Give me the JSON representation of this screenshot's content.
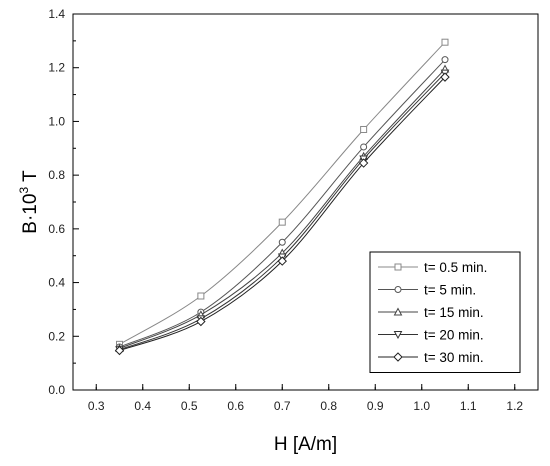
{
  "chart_data": {
    "type": "line",
    "title": "",
    "xlabel": "H [A/m]",
    "ylabel_base": "B·10",
    "ylabel_exp": "3",
    "ylabel_unit": " T",
    "xlim": [
      0.25,
      1.25
    ],
    "ylim": [
      0.0,
      1.4
    ],
    "x_ticks": [
      "0.3",
      "0.4",
      "0.5",
      "0.6",
      "0.7",
      "0.8",
      "0.9",
      "1.0",
      "1.1",
      "1.2"
    ],
    "y_ticks": [
      "0.0",
      "0.2",
      "0.4",
      "0.6",
      "0.8",
      "1.0",
      "1.2",
      "1.4"
    ],
    "legend_position": "bottom-right",
    "x": [
      0.35,
      0.525,
      0.7,
      0.875,
      1.05
    ],
    "series": [
      {
        "name": "t= 0.5 min.",
        "marker": "square",
        "color": "#888888",
        "values": [
          0.17,
          0.35,
          0.625,
          0.97,
          1.295
        ]
      },
      {
        "name": "t= 5 min.",
        "marker": "circle",
        "color": "#555555",
        "values": [
          0.16,
          0.29,
          0.55,
          0.905,
          1.23
        ]
      },
      {
        "name": "t= 15 min.",
        "marker": "triangle-up",
        "color": "#444444",
        "values": [
          0.155,
          0.28,
          0.51,
          0.87,
          1.195
        ]
      },
      {
        "name": "t= 20 min.",
        "marker": "triangle-down",
        "color": "#333333",
        "values": [
          0.15,
          0.265,
          0.495,
          0.86,
          1.18
        ]
      },
      {
        "name": "t= 30 min.",
        "marker": "diamond",
        "color": "#222222",
        "values": [
          0.147,
          0.255,
          0.48,
          0.845,
          1.165
        ]
      }
    ]
  }
}
